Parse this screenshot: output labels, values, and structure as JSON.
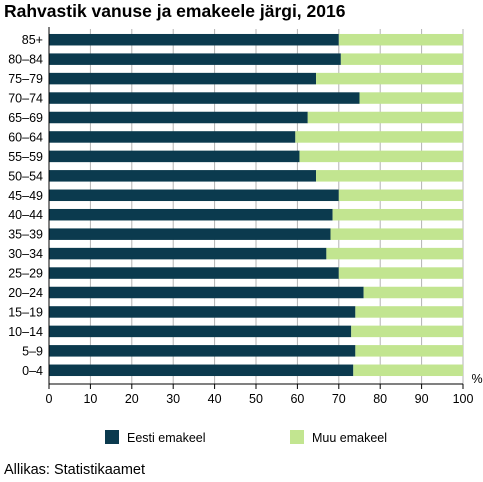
{
  "title": "Rahvastik vanuse ja emakeele järgi, 2016",
  "source": "Allikas: Statistikaamet",
  "unit_label": "%",
  "colors": {
    "eesti": "#0b3a4e",
    "muu": "#c2e590",
    "grid": "#b3b3b3",
    "axis": "#000000"
  },
  "chart_data": {
    "type": "bar",
    "orientation": "horizontal",
    "stacked": true,
    "categories": [
      "85+",
      "80–84",
      "75–79",
      "70–74",
      "65–69",
      "60–64",
      "55–59",
      "50–54",
      "45–49",
      "40–44",
      "35–39",
      "30–34",
      "25–29",
      "20–24",
      "15–19",
      "10–14",
      "5–9",
      "0–4"
    ],
    "series": [
      {
        "name": "Eesti emakeel",
        "values": [
          70,
          70.5,
          64.5,
          75,
          62.5,
          59.5,
          60.5,
          64.5,
          70,
          68.5,
          68,
          67,
          70,
          76,
          74,
          73,
          74,
          73.5
        ]
      },
      {
        "name": "Muu emakeel",
        "values": [
          30,
          29.5,
          35.5,
          25,
          37.5,
          40.5,
          39.5,
          35.5,
          30,
          31.5,
          32,
          33,
          30,
          24,
          26,
          27,
          26,
          26.5
        ]
      }
    ],
    "xlim": [
      0,
      100
    ],
    "xticks": [
      "0",
      "10",
      "20",
      "30",
      "40",
      "50",
      "60",
      "70",
      "80",
      "90",
      "100"
    ],
    "grid": true,
    "legend_position": "bottom"
  }
}
